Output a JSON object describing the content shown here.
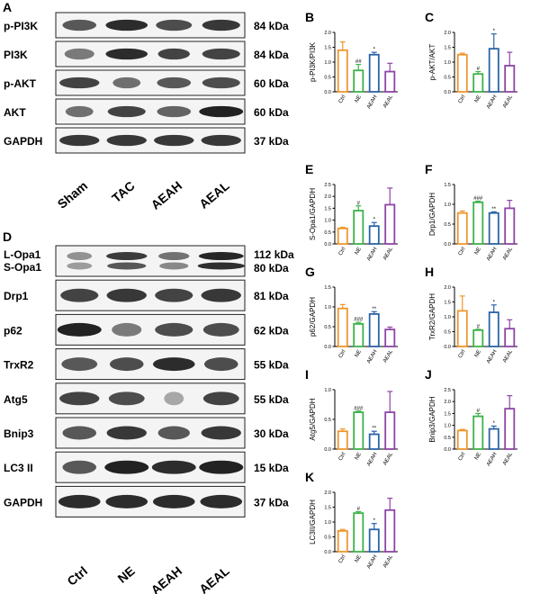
{
  "panel_letters": [
    "A",
    "B",
    "C",
    "D",
    "E",
    "F",
    "G",
    "H",
    "I",
    "J",
    "K"
  ],
  "western_A": {
    "letter": "A",
    "rows": [
      {
        "label": "p-PI3K",
        "kda": "84 kDa"
      },
      {
        "label": "PI3K",
        "kda": "84 kDa"
      },
      {
        "label": "p-AKT",
        "kda": "60 kDa"
      },
      {
        "label": "AKT",
        "kda": "60 kDa"
      },
      {
        "label": "GAPDH",
        "kda": "37 kDa"
      }
    ],
    "lanes": [
      "Sham",
      "TAC",
      "AEAH",
      "AEAL"
    ]
  },
  "western_D": {
    "letter": "D",
    "rows": [
      {
        "label": "L-Opa1",
        "label2": "S-Opa1",
        "kda": "112 kDa",
        "kda2": "80 kDa"
      },
      {
        "label": "Drp1",
        "kda": "81 kDa"
      },
      {
        "label": "p62",
        "kda": "62 kDa"
      },
      {
        "label": "TrxR2",
        "kda": "55 kDa"
      },
      {
        "label": "Atg5",
        "kda": "55 kDa"
      },
      {
        "label": "Bnip3",
        "kda": "30 kDa"
      },
      {
        "label": "LC3 II",
        "kda": "15 kDa"
      },
      {
        "label": "GAPDH",
        "kda": "37 kDa"
      }
    ],
    "lanes": [
      "Ctrl",
      "NE",
      "AEAH",
      "AEAL"
    ]
  },
  "chart_data": [
    {
      "type": "bar",
      "panel": "B",
      "ylabel": "p-PI3K/PI3K",
      "categories": [
        "Ctrl",
        "NE",
        "AEAH",
        "AEAL"
      ],
      "values": [
        1.4,
        0.72,
        1.25,
        0.68
      ],
      "errors": [
        0.28,
        0.2,
        0.08,
        0.28
      ],
      "sig": [
        "",
        "##",
        "*",
        ""
      ],
      "ylim": [
        0,
        2.0
      ],
      "ticks": [
        "0.0",
        "0.5",
        "1.0",
        "1.5",
        "2.0"
      ],
      "colors": [
        "#f0962c",
        "#3db34a",
        "#2a63a8",
        "#8e44a6"
      ]
    },
    {
      "type": "bar",
      "panel": "C",
      "ylabel": "p-AKT/AKT",
      "categories": [
        "Ctrl",
        "NE",
        "AEAH",
        "AEAL"
      ],
      "values": [
        1.25,
        0.6,
        1.45,
        0.88
      ],
      "errors": [
        0.05,
        0.08,
        0.5,
        0.45
      ],
      "sig": [
        "",
        "#",
        "*",
        ""
      ],
      "ylim": [
        0,
        2.0
      ],
      "ticks": [
        "0.0",
        "0.5",
        "1.0",
        "1.5",
        "2.0"
      ],
      "colors": [
        "#f0962c",
        "#3db34a",
        "#2a63a8",
        "#8e44a6"
      ]
    },
    {
      "type": "bar",
      "panel": "E",
      "ylabel": "S-Opa1/GAPDH",
      "categories": [
        "Ctrl",
        "NE",
        "AEAH",
        "AEAL"
      ],
      "values": [
        0.65,
        1.4,
        0.75,
        1.65
      ],
      "errors": [
        0.05,
        0.2,
        0.15,
        0.7
      ],
      "sig": [
        "",
        "#",
        "*",
        ""
      ],
      "ylim": [
        0,
        2.5
      ],
      "ticks": [
        "0.0",
        "0.5",
        "1.0",
        "1.5",
        "2.0",
        "2.5"
      ],
      "colors": [
        "#f0962c",
        "#3db34a",
        "#2a63a8",
        "#8e44a6"
      ]
    },
    {
      "type": "bar",
      "panel": "F",
      "ylabel": "Drp1/GAPDH",
      "categories": [
        "Ctrl",
        "NE",
        "AEAH",
        "AEAL"
      ],
      "values": [
        0.78,
        1.05,
        0.78,
        0.9
      ],
      "errors": [
        0.05,
        0.03,
        0.03,
        0.2
      ],
      "sig": [
        "",
        "###",
        "**",
        ""
      ],
      "ylim": [
        0,
        1.5
      ],
      "ticks": [
        "0.0",
        "0.5",
        "1.0",
        "1.5"
      ],
      "colors": [
        "#f0962c",
        "#3db34a",
        "#2a63a8",
        "#8e44a6"
      ]
    },
    {
      "type": "bar",
      "panel": "G",
      "ylabel": "p62/GAPDH",
      "categories": [
        "Ctrl",
        "NE",
        "AEAH",
        "AEAL"
      ],
      "values": [
        0.96,
        0.57,
        0.82,
        0.43
      ],
      "errors": [
        0.1,
        0.04,
        0.06,
        0.06
      ],
      "sig": [
        "",
        "###",
        "**",
        ""
      ],
      "ylim": [
        0,
        1.5
      ],
      "ticks": [
        "0.0",
        "0.5",
        "1.0",
        "1.5"
      ],
      "colors": [
        "#f0962c",
        "#3db34a",
        "#2a63a8",
        "#8e44a6"
      ]
    },
    {
      "type": "bar",
      "panel": "H",
      "ylabel": "TrxR2/GAPDH",
      "categories": [
        "Ctrl",
        "NE",
        "AEAH",
        "AEAL"
      ],
      "values": [
        1.2,
        0.55,
        1.15,
        0.6
      ],
      "errors": [
        0.5,
        0.03,
        0.25,
        0.3
      ],
      "sig": [
        "",
        "#",
        "*",
        ""
      ],
      "ylim": [
        0,
        2.0
      ],
      "ticks": [
        "0.0",
        "0.5",
        "1.0",
        "1.5",
        "2.0"
      ],
      "colors": [
        "#f0962c",
        "#3db34a",
        "#2a63a8",
        "#8e44a6"
      ]
    },
    {
      "type": "bar",
      "panel": "I",
      "ylabel": "Atg5/GAPDH",
      "categories": [
        "Ctrl",
        "NE",
        "AEAH",
        "AEAL"
      ],
      "values": [
        0.3,
        0.62,
        0.25,
        0.62
      ],
      "errors": [
        0.04,
        0.02,
        0.05,
        0.35
      ],
      "sig": [
        "",
        "###",
        "**",
        ""
      ],
      "ylim": [
        0,
        1.0
      ],
      "ticks": [
        "0.0",
        "0.5",
        "1.0"
      ],
      "colors": [
        "#f0962c",
        "#3db34a",
        "#2a63a8",
        "#8e44a6"
      ]
    },
    {
      "type": "bar",
      "panel": "J",
      "ylabel": "Bnip3/GAPDH",
      "categories": [
        "Ctrl",
        "NE",
        "AEAH",
        "AEAL"
      ],
      "values": [
        0.78,
        1.38,
        0.85,
        1.7
      ],
      "errors": [
        0.05,
        0.12,
        0.12,
        0.55
      ],
      "sig": [
        "",
        "#",
        "*",
        ""
      ],
      "ylim": [
        0,
        2.5
      ],
      "ticks": [
        "0.0",
        "0.5",
        "1.0",
        "1.5",
        "2.0",
        "2.5"
      ],
      "colors": [
        "#f0962c",
        "#3db34a",
        "#2a63a8",
        "#8e44a6"
      ]
    },
    {
      "type": "bar",
      "panel": "K",
      "ylabel": "LC3II/GAPDH",
      "categories": [
        "Ctrl",
        "NE",
        "AEAH",
        "AEAL"
      ],
      "values": [
        0.7,
        1.3,
        0.75,
        1.4
      ],
      "errors": [
        0.05,
        0.05,
        0.2,
        0.4
      ],
      "sig": [
        "",
        "#",
        "*",
        ""
      ],
      "ylim": [
        0,
        2.0
      ],
      "ticks": [
        "0.0",
        "0.5",
        "1.0",
        "1.5",
        "2.0"
      ],
      "colors": [
        "#f0962c",
        "#3db34a",
        "#2a63a8",
        "#8e44a6"
      ]
    }
  ]
}
